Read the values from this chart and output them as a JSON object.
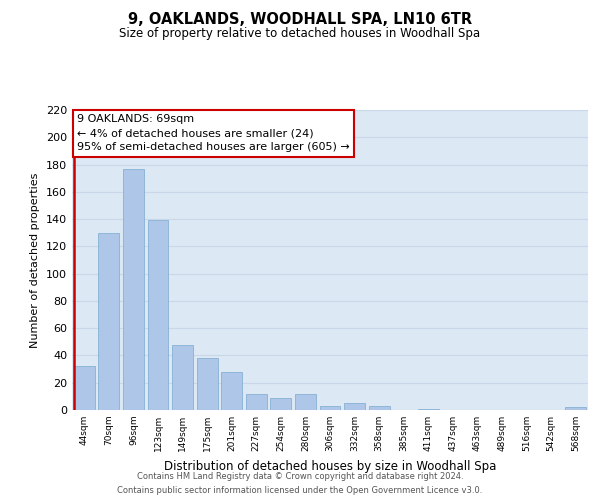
{
  "title": "9, OAKLANDS, WOODHALL SPA, LN10 6TR",
  "subtitle": "Size of property relative to detached houses in Woodhall Spa",
  "xlabel": "Distribution of detached houses by size in Woodhall Spa",
  "ylabel": "Number of detached properties",
  "bin_labels": [
    "44sqm",
    "70sqm",
    "96sqm",
    "123sqm",
    "149sqm",
    "175sqm",
    "201sqm",
    "227sqm",
    "254sqm",
    "280sqm",
    "306sqm",
    "332sqm",
    "358sqm",
    "385sqm",
    "411sqm",
    "437sqm",
    "463sqm",
    "489sqm",
    "516sqm",
    "542sqm",
    "568sqm"
  ],
  "bar_heights": [
    32,
    130,
    177,
    139,
    48,
    38,
    28,
    12,
    9,
    12,
    3,
    5,
    3,
    0,
    1,
    0,
    0,
    0,
    0,
    0,
    2
  ],
  "bar_color": "#aec6e8",
  "bar_edge_color": "#7aaad0",
  "marker_line_color": "#cc0000",
  "ylim": [
    0,
    220
  ],
  "yticks": [
    0,
    20,
    40,
    60,
    80,
    100,
    120,
    140,
    160,
    180,
    200,
    220
  ],
  "annotation_title": "9 OAKLANDS: 69sqm",
  "annotation_line1": "← 4% of detached houses are smaller (24)",
  "annotation_line2": "95% of semi-detached houses are larger (605) →",
  "annotation_box_color": "#ffffff",
  "annotation_box_edge_color": "#cc0000",
  "footer_line1": "Contains HM Land Registry data © Crown copyright and database right 2024.",
  "footer_line2": "Contains public sector information licensed under the Open Government Licence v3.0.",
  "background_color": "#ffffff",
  "grid_color": "#c8d8e8",
  "plot_bg_color": "#dce8f4"
}
